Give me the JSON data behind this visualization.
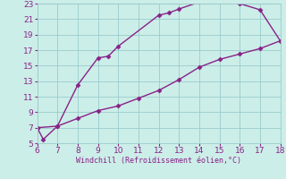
{
  "xlabel": "Windchill (Refroidissement éolien,°C)",
  "background_color": "#cceee8",
  "line_color": "#882288",
  "upper_x": [
    6.0,
    6.3,
    7.0,
    8.0,
    9.0,
    9.5,
    10.0,
    12.0,
    12.5,
    13.0,
    14.0,
    15.0,
    16.0,
    17.0,
    18.0
  ],
  "upper_y": [
    7.0,
    5.5,
    7.2,
    12.5,
    16.0,
    16.2,
    17.5,
    21.5,
    21.8,
    22.3,
    23.2,
    23.3,
    23.0,
    22.2,
    18.2
  ],
  "lower_x": [
    6.0,
    7.0,
    8.0,
    9.0,
    10.0,
    11.0,
    12.0,
    13.0,
    14.0,
    15.0,
    16.0,
    17.0,
    18.0
  ],
  "lower_y": [
    7.0,
    7.2,
    8.2,
    9.2,
    9.8,
    10.8,
    11.8,
    13.2,
    14.8,
    15.8,
    16.5,
    17.2,
    18.2
  ],
  "xlim": [
    6,
    18
  ],
  "ylim": [
    5,
    23
  ],
  "xticks": [
    6,
    7,
    8,
    9,
    10,
    11,
    12,
    13,
    14,
    15,
    16,
    17,
    18
  ],
  "yticks": [
    5,
    7,
    9,
    11,
    13,
    15,
    17,
    19,
    21,
    23
  ],
  "grid_color": "#99cccc",
  "marker": "D",
  "markersize": 2.5,
  "linewidth": 1.0,
  "tick_fontsize": 6.5,
  "xlabel_fontsize": 6.0
}
